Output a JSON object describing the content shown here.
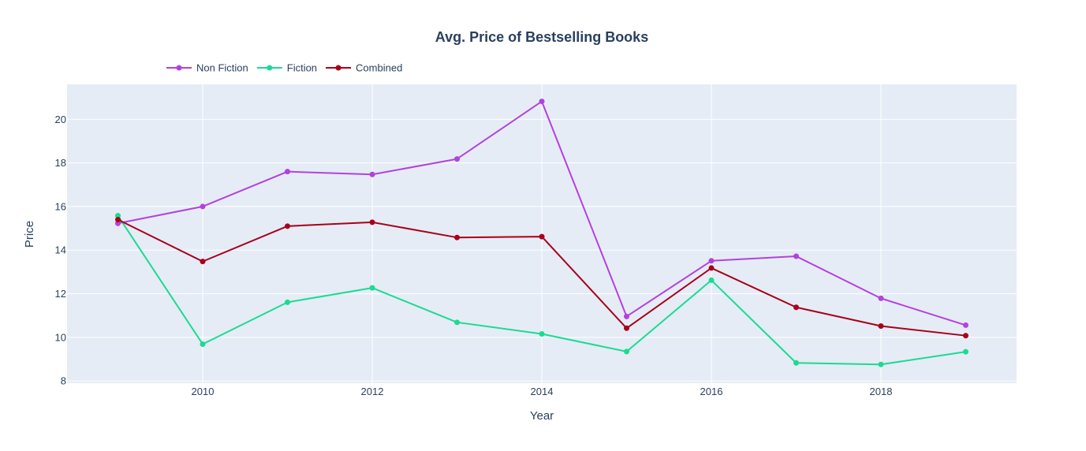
{
  "chart_data": {
    "type": "line",
    "title": "Avg. Price of Bestselling Books",
    "xlabel": "Year",
    "ylabel": "Price",
    "x": [
      2009,
      2010,
      2011,
      2012,
      2013,
      2014,
      2015,
      2016,
      2017,
      2018,
      2019
    ],
    "xlim": [
      2008.4,
      2019.6
    ],
    "ylim": [
      7.9,
      21.6
    ],
    "xticks": [
      2010,
      2012,
      2014,
      2016,
      2018
    ],
    "yticks": [
      8,
      10,
      12,
      14,
      16,
      18,
      20
    ],
    "grid": true,
    "legend_position": "top-left",
    "series": [
      {
        "name": "Non Fiction",
        "color": "#b341e0",
        "values": [
          15.23,
          16.0,
          17.6,
          17.47,
          18.18,
          20.82,
          10.96,
          13.51,
          13.72,
          11.79,
          10.56
        ]
      },
      {
        "name": "Fiction",
        "color": "#1adb92",
        "values": [
          15.58,
          9.69,
          11.61,
          12.27,
          10.69,
          10.16,
          9.35,
          12.62,
          8.83,
          8.76,
          9.34
        ]
      },
      {
        "name": "Combined",
        "color": "#a8001a",
        "values": [
          15.4,
          13.48,
          15.1,
          15.28,
          14.58,
          14.62,
          10.42,
          13.18,
          11.38,
          10.52,
          10.08
        ]
      }
    ]
  },
  "colors": {
    "plot_background": "#e5ecf6",
    "grid": "#ffffff",
    "text": "#2a3f5f"
  }
}
